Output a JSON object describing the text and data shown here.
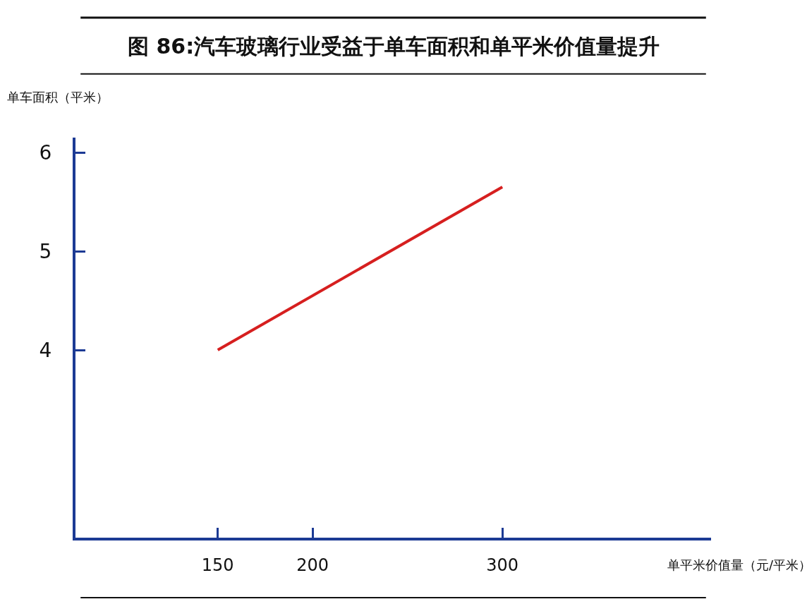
{
  "chart_data": {
    "type": "line",
    "title": "图 86:汽车玻璃行业受益于单车面积和单平米价值量提升",
    "xlabel": "单平米价值量（元/平米）",
    "ylabel": "单车面积（平米）",
    "x": [
      150,
      300
    ],
    "series": [
      {
        "color": "#d61f1f",
        "values": [
          4.0,
          5.65
        ]
      }
    ],
    "xlim": [
      75,
      410
    ],
    "xticks": [
      150,
      200,
      300
    ],
    "ylim": [
      2.1,
      6.15
    ],
    "yticks": [
      4,
      5,
      6
    ],
    "marker": "none",
    "line_style": "solid"
  }
}
